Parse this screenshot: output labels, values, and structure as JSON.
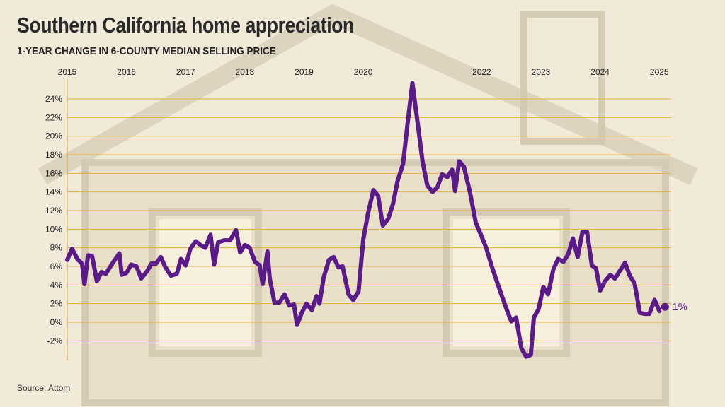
{
  "header": {
    "title": "Southern California home appreciation",
    "subtitle": "1-YEAR CHANGE IN 6-COUNTY MEDIAN SELLING PRICE"
  },
  "footer": {
    "source": "Source: Attom"
  },
  "colors": {
    "line": "#5b1a8a",
    "grid": "#e2b13c",
    "text": "#222222",
    "background": "#f1ead8"
  },
  "chart_data": {
    "type": "line",
    "title": "Southern California home appreciation",
    "subtitle": "1-YEAR CHANGE IN 6-COUNTY MEDIAN SELLING PRICE",
    "xlabel": "",
    "ylabel": "",
    "y_unit": "%",
    "ylim": [
      -4,
      26
    ],
    "y_ticks": [
      -2,
      0,
      2,
      4,
      6,
      8,
      10,
      12,
      14,
      16,
      18,
      20,
      22,
      24
    ],
    "y_tick_labels": [
      "-2%",
      "0%",
      "2%",
      "4%",
      "6%",
      "8%",
      "10%",
      "12%",
      "14%",
      "16%",
      "18%",
      "20%",
      "22%",
      "24%"
    ],
    "xlim": [
      2015.0,
      2025.2
    ],
    "x_ticks": [
      2015,
      2016,
      2017,
      2018,
      2019,
      2020,
      2022,
      2023,
      2024,
      2025
    ],
    "x_tick_labels": [
      "2015",
      "2016",
      "2017",
      "2018",
      "2019",
      "2020",
      "2022",
      "2023",
      "2024",
      "2025"
    ],
    "x_axis_position": "top",
    "grid": true,
    "end_label": "1%",
    "series": [
      {
        "points": [
          [
            2015.0,
            6.7
          ],
          [
            2015.08,
            7.9
          ],
          [
            2015.17,
            6.8
          ],
          [
            2015.25,
            6.3
          ],
          [
            2015.29,
            4.1
          ],
          [
            2015.35,
            7.2
          ],
          [
            2015.42,
            7.1
          ],
          [
            2015.5,
            4.4
          ],
          [
            2015.58,
            5.4
          ],
          [
            2015.65,
            5.2
          ],
          [
            2015.75,
            6.2
          ],
          [
            2015.88,
            7.4
          ],
          [
            2015.92,
            5.1
          ],
          [
            2016.0,
            5.3
          ],
          [
            2016.08,
            6.2
          ],
          [
            2016.17,
            6.0
          ],
          [
            2016.25,
            4.7
          ],
          [
            2016.35,
            5.5
          ],
          [
            2016.42,
            6.3
          ],
          [
            2016.5,
            6.3
          ],
          [
            2016.58,
            7.0
          ],
          [
            2016.65,
            6.0
          ],
          [
            2016.75,
            5.0
          ],
          [
            2016.85,
            5.2
          ],
          [
            2016.92,
            6.8
          ],
          [
            2017.0,
            6.1
          ],
          [
            2017.08,
            7.9
          ],
          [
            2017.17,
            8.7
          ],
          [
            2017.25,
            8.3
          ],
          [
            2017.33,
            8.0
          ],
          [
            2017.42,
            9.4
          ],
          [
            2017.48,
            6.2
          ],
          [
            2017.55,
            8.6
          ],
          [
            2017.65,
            8.8
          ],
          [
            2017.75,
            8.8
          ],
          [
            2017.85,
            9.9
          ],
          [
            2017.92,
            7.5
          ],
          [
            2018.0,
            8.3
          ],
          [
            2018.08,
            8.0
          ],
          [
            2018.17,
            6.5
          ],
          [
            2018.25,
            6.1
          ],
          [
            2018.3,
            4.1
          ],
          [
            2018.38,
            7.6
          ],
          [
            2018.42,
            4.7
          ],
          [
            2018.5,
            2.1
          ],
          [
            2018.58,
            2.1
          ],
          [
            2018.67,
            3.0
          ],
          [
            2018.75,
            1.8
          ],
          [
            2018.83,
            1.9
          ],
          [
            2018.88,
            -0.3
          ],
          [
            2018.96,
            1.0
          ],
          [
            2019.04,
            2.0
          ],
          [
            2019.13,
            1.3
          ],
          [
            2019.21,
            2.8
          ],
          [
            2019.26,
            2.0
          ],
          [
            2019.33,
            4.8
          ],
          [
            2019.42,
            6.7
          ],
          [
            2019.5,
            7.0
          ],
          [
            2019.58,
            5.9
          ],
          [
            2019.65,
            6.0
          ],
          [
            2019.75,
            3.0
          ],
          [
            2019.83,
            2.4
          ],
          [
            2019.92,
            3.3
          ],
          [
            2020.0,
            8.9
          ],
          [
            2020.08,
            11.7
          ],
          [
            2020.17,
            14.2
          ],
          [
            2020.25,
            13.6
          ],
          [
            2020.33,
            10.4
          ],
          [
            2020.42,
            11.1
          ],
          [
            2020.5,
            12.7
          ],
          [
            2020.58,
            15.2
          ],
          [
            2020.67,
            17.0
          ],
          [
            2020.75,
            21.5
          ],
          [
            2020.83,
            25.7
          ],
          [
            2020.92,
            21.3
          ],
          [
            2021.0,
            17.3
          ],
          [
            2021.08,
            14.7
          ],
          [
            2021.17,
            14.0
          ],
          [
            2021.25,
            14.5
          ],
          [
            2021.33,
            15.9
          ],
          [
            2021.42,
            15.6
          ],
          [
            2021.5,
            16.4
          ],
          [
            2021.55,
            14.1
          ],
          [
            2021.62,
            17.3
          ],
          [
            2021.7,
            16.7
          ],
          [
            2021.8,
            14.0
          ],
          [
            2021.9,
            10.7
          ],
          [
            2022.0,
            9.2
          ],
          [
            2022.08,
            7.9
          ],
          [
            2022.17,
            6.0
          ],
          [
            2022.25,
            4.5
          ],
          [
            2022.33,
            3.0
          ],
          [
            2022.42,
            1.4
          ],
          [
            2022.5,
            0.1
          ],
          [
            2022.58,
            0.5
          ],
          [
            2022.67,
            -2.8
          ],
          [
            2022.75,
            -3.7
          ],
          [
            2022.83,
            -3.5
          ],
          [
            2022.88,
            0.5
          ],
          [
            2022.96,
            1.4
          ],
          [
            2023.04,
            3.8
          ],
          [
            2023.12,
            3.0
          ],
          [
            2023.21,
            5.7
          ],
          [
            2023.29,
            6.8
          ],
          [
            2023.38,
            6.5
          ],
          [
            2023.46,
            7.3
          ],
          [
            2023.54,
            9.0
          ],
          [
            2023.62,
            7.0
          ],
          [
            2023.7,
            9.7
          ],
          [
            2023.78,
            9.7
          ],
          [
            2023.86,
            6.1
          ],
          [
            2023.93,
            5.8
          ],
          [
            2024.0,
            3.4
          ],
          [
            2024.08,
            4.4
          ],
          [
            2024.17,
            5.1
          ],
          [
            2024.25,
            4.7
          ],
          [
            2024.33,
            5.5
          ],
          [
            2024.42,
            6.4
          ],
          [
            2024.5,
            5.0
          ],
          [
            2024.58,
            4.2
          ],
          [
            2024.67,
            1.0
          ],
          [
            2024.75,
            0.9
          ],
          [
            2024.83,
            0.9
          ],
          [
            2024.92,
            2.4
          ],
          [
            2025.0,
            1.2
          ]
        ]
      }
    ]
  }
}
